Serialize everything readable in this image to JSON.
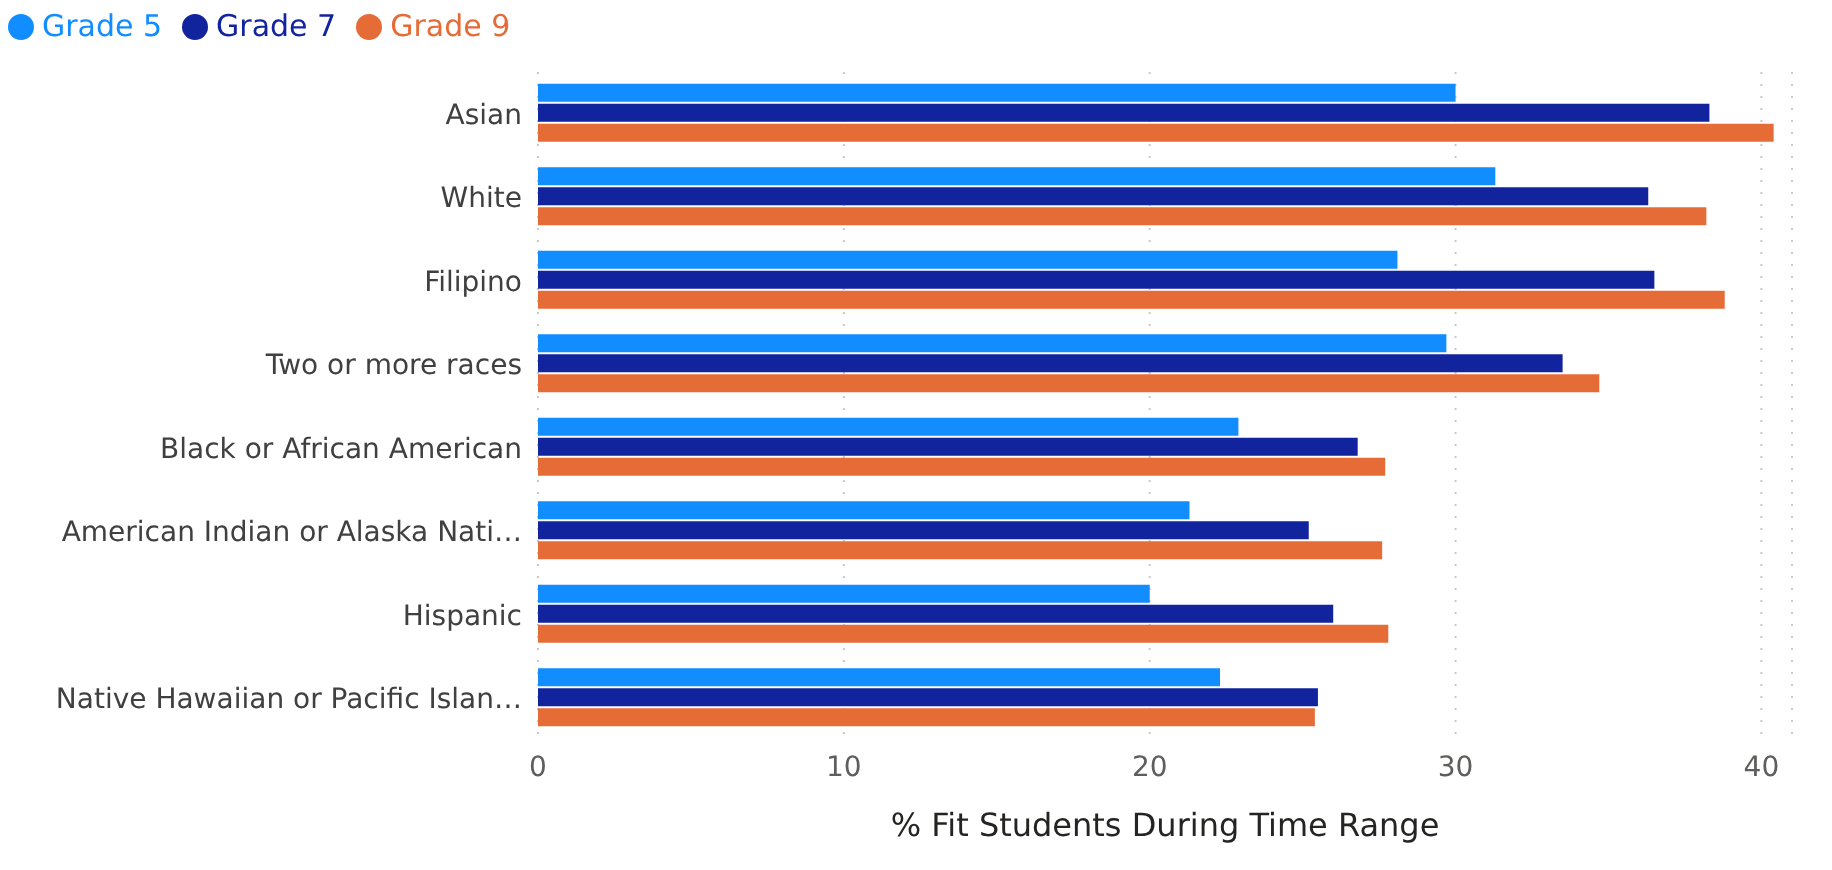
{
  "chart_data": {
    "type": "bar",
    "orientation": "horizontal",
    "xlabel": "% Fit Students During Time Range",
    "categories": [
      "Asian",
      "White",
      "Filipino",
      "Two or more races",
      "Black or African American",
      "American Indian or Alaska Nati…",
      "Hispanic",
      "Native Hawaiian or Pacific Islan…"
    ],
    "series": [
      {
        "name": "Grade 5",
        "color": "#118dff",
        "values": [
          30.0,
          31.3,
          28.1,
          29.7,
          22.9,
          21.3,
          20.0,
          22.3
        ]
      },
      {
        "name": "Grade 7",
        "color": "#12239e",
        "values": [
          38.3,
          36.3,
          36.5,
          33.5,
          26.8,
          25.2,
          26.0,
          25.5
        ]
      },
      {
        "name": "Grade 9",
        "color": "#e66c37",
        "values": [
          40.4,
          38.2,
          38.8,
          34.7,
          27.7,
          27.6,
          27.8,
          25.4
        ]
      }
    ],
    "xlim": [
      0,
      41
    ],
    "xticks": [
      0,
      10,
      20,
      30,
      40
    ],
    "grid": "x",
    "legend": "top left"
  }
}
